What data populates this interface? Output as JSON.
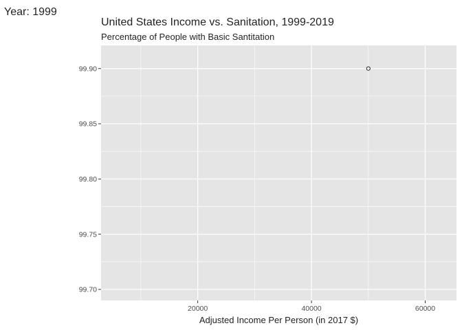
{
  "frame_label": "Year: 1999",
  "chart_data": {
    "type": "scatter",
    "title": "United States Income vs. Sanitation, 1999-2019",
    "subtitle": "Percentage of People with Basic Santitation",
    "xlabel": "Adjusted Income Per Person (in 2017 $)",
    "ylabel": "",
    "xlim": [
      3000,
      65500
    ],
    "ylim": [
      99.69,
      99.921
    ],
    "x_ticks": [
      20000,
      40000,
      60000
    ],
    "x_tick_labels": [
      "20000",
      "40000",
      "60000"
    ],
    "x_minor_ticks": [
      10000,
      30000,
      50000
    ],
    "y_ticks": [
      99.7,
      99.75,
      99.8,
      99.85,
      99.9
    ],
    "y_tick_labels": [
      "99.70",
      "99.75",
      "99.80",
      "99.85",
      "99.90"
    ],
    "y_minor_ticks": [
      99.725,
      99.775,
      99.825,
      99.875
    ],
    "grid": true,
    "legend": "none",
    "colors": {
      "panel": "#e5e5e5",
      "grid": "#ffffff",
      "point_fill": "#ffffff",
      "point_stroke": "#222222"
    },
    "points": [
      {
        "x": 50000,
        "y": 99.9
      }
    ]
  }
}
